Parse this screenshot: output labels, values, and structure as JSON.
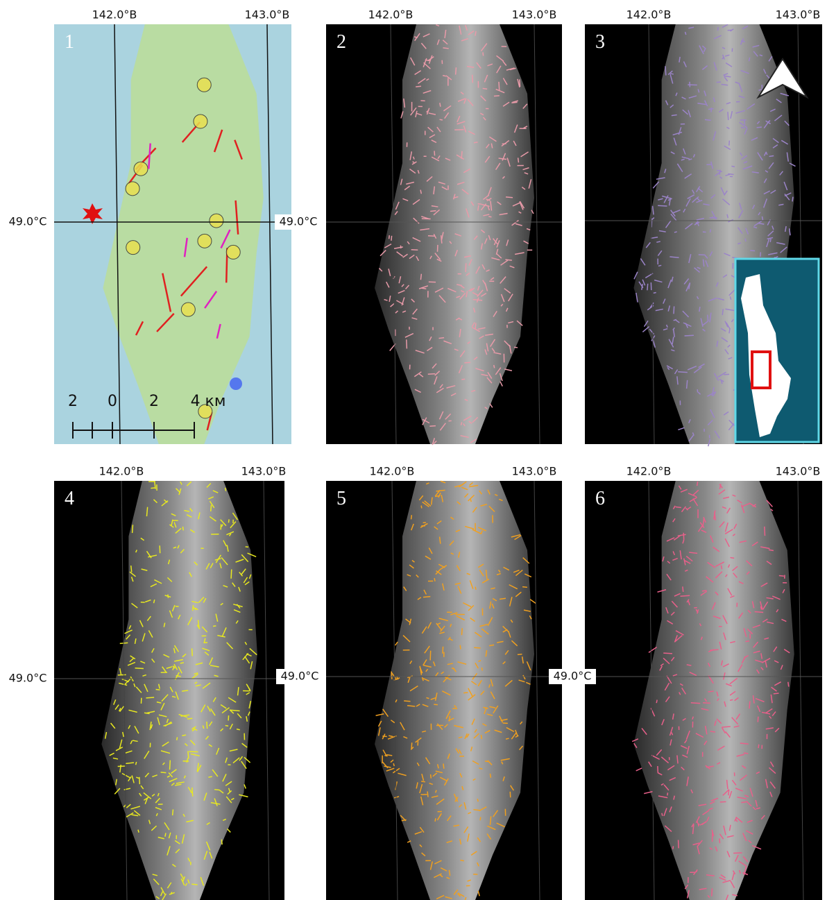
{
  "panels": [
    {
      "number": "1",
      "lon_labels": [
        "142.0°В",
        "143.0°В"
      ],
      "lat_label": "49.0°С",
      "scale_labels": [
        "2",
        "0",
        "2",
        "4 км"
      ]
    },
    {
      "number": "2",
      "lon_labels": [
        "142.0°В",
        "143.0°В"
      ],
      "lat_label": "49.0°С"
    },
    {
      "number": "3",
      "lon_labels": [
        "142.0°В",
        "143.0°В"
      ]
    },
    {
      "number": "4",
      "lon_labels": [
        "142.0°В",
        "143.0°В"
      ],
      "lat_label": "49.0°С"
    },
    {
      "number": "5",
      "lon_labels": [
        "142.0°В",
        "143.0°В"
      ],
      "lat_label": "49.0°С"
    },
    {
      "number": "6",
      "lon_labels": [
        "142.0°В",
        "143.0°В"
      ],
      "lat_label": "49.0°С"
    }
  ]
}
